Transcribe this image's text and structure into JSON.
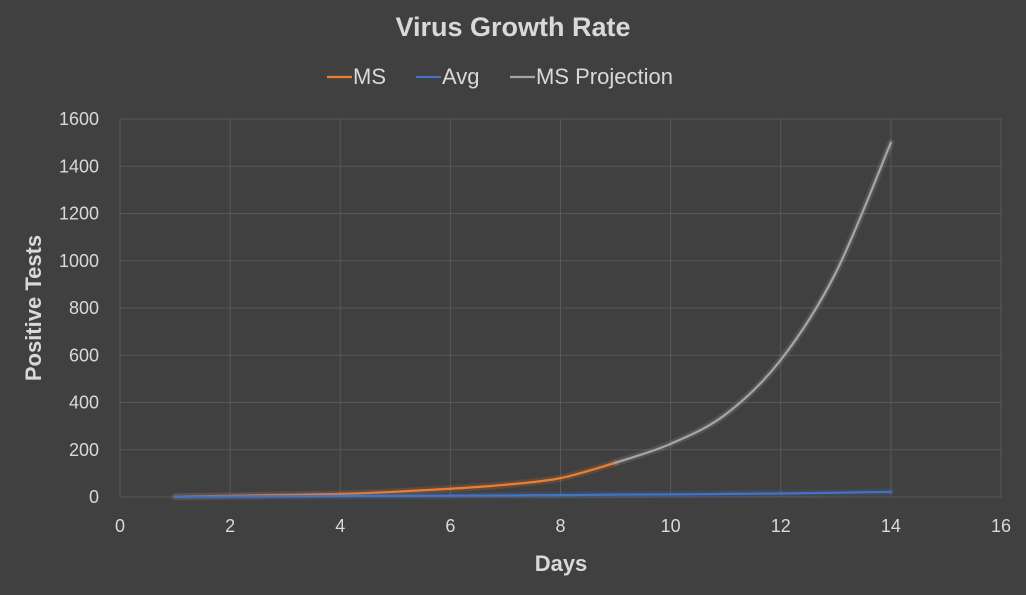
{
  "chart_data": {
    "type": "line",
    "title": "Virus Growth Rate",
    "xlabel": "Days",
    "ylabel": "Positive Tests",
    "xlim": [
      0,
      16
    ],
    "ylim": [
      0,
      1600
    ],
    "xticks": [
      0,
      2,
      4,
      6,
      8,
      10,
      12,
      14,
      16
    ],
    "yticks": [
      0,
      200,
      400,
      600,
      800,
      1000,
      1200,
      1400,
      1600
    ],
    "grid": true,
    "legend_position": "top",
    "series": [
      {
        "name": "MS",
        "color": "#ed7d31",
        "x": [
          1,
          2,
          3,
          4,
          5,
          6,
          7,
          8,
          9
        ],
        "y": [
          1,
          5,
          9,
          13,
          22,
          35,
          52,
          80,
          145
        ]
      },
      {
        "name": "Avg",
        "color": "#4472c4",
        "x": [
          1,
          2,
          3,
          4,
          5,
          6,
          7,
          8,
          9,
          10,
          11,
          12,
          13,
          14
        ],
        "y": [
          1,
          2,
          3,
          4,
          5,
          6,
          7,
          8,
          10,
          11,
          13,
          15,
          18,
          22
        ]
      },
      {
        "name": "MS Projection",
        "color": "#a5a5a5",
        "x": [
          9,
          10,
          11,
          12,
          13,
          14
        ],
        "y": [
          145,
          225,
          350,
          580,
          950,
          1500
        ]
      }
    ]
  }
}
